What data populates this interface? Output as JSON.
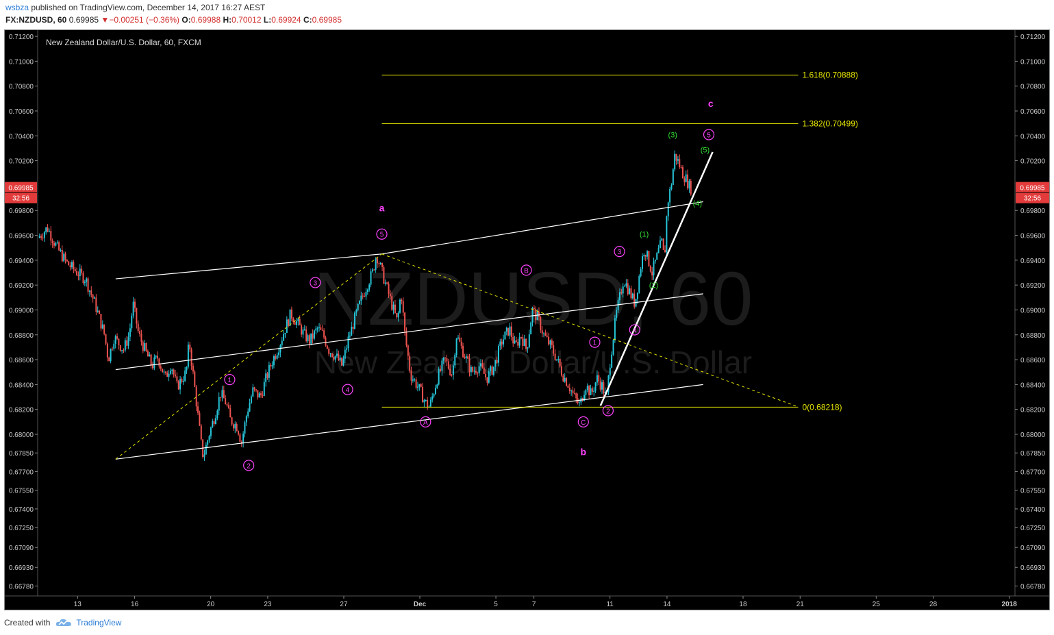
{
  "header": {
    "author": "wsbza",
    "published_text": "published on TradingView.com, December 14, 2017 16:27 AEST",
    "symbol": "FX:NZDUSD, 60",
    "price": "0.69985",
    "change_arrow": "▼",
    "change": "−0.00251 (−0.36%)",
    "open_label": "O:",
    "open": "0.69988",
    "high_label": "H:",
    "high": "0.70012",
    "low_label": "L:",
    "low": "0.69924",
    "close_label": "C:",
    "close": "0.69985"
  },
  "footer": {
    "created_with": "Created with",
    "brand": "TradingView",
    "logo_icon": "tradingview-cloud-icon"
  },
  "chart_data": {
    "type": "candlestick",
    "title": "New Zealand Dollar/U.S. Dollar, 60, FXCM",
    "watermark_symbol": "NZDUSD, 60",
    "watermark_name": "New Zealand Dollar/U.S. Dollar",
    "ylim": [
      0.667,
      0.7125
    ],
    "y_ticks": [
      "0.71200",
      "0.71000",
      "0.70800",
      "0.70600",
      "0.70400",
      "0.70200",
      "0.69985",
      "0.69800",
      "0.69600",
      "0.69400",
      "0.69200",
      "0.69000",
      "0.68800",
      "0.68600",
      "0.68400",
      "0.68200",
      "0.68000",
      "0.67850",
      "0.67700",
      "0.67550",
      "0.67400",
      "0.67250",
      "0.67090",
      "0.66930",
      "0.66780"
    ],
    "x_tick_labels": [
      {
        "label": "13",
        "day": 0
      },
      {
        "label": "16",
        "day": 3
      },
      {
        "label": "20",
        "day": 7
      },
      {
        "label": "23",
        "day": 10
      },
      {
        "label": "27",
        "day": 14
      },
      {
        "label": "Dec",
        "day": 18
      },
      {
        "label": "5",
        "day": 22
      },
      {
        "label": "7",
        "day": 24
      },
      {
        "label": "11",
        "day": 28
      },
      {
        "label": "14",
        "day": 31
      },
      {
        "label": "18",
        "day": 35
      },
      {
        "label": "21",
        "day": 38
      },
      {
        "label": "25",
        "day": 42
      },
      {
        "label": "28",
        "day": 45
      },
      {
        "label": "2018",
        "day": 49
      }
    ],
    "x_range_days": [
      -2.1,
      49.3
    ],
    "last_price": "0.69985",
    "countdown": "32:56",
    "price_path": [
      [
        -2.0,
        0.6958
      ],
      [
        -1.5,
        0.6966
      ],
      [
        -1.0,
        0.695
      ],
      [
        -0.5,
        0.6938
      ],
      [
        0.0,
        0.6931
      ],
      [
        0.5,
        0.6925
      ],
      [
        1.0,
        0.6905
      ],
      [
        1.5,
        0.688
      ],
      [
        1.7,
        0.686
      ],
      [
        2.0,
        0.6878
      ],
      [
        2.5,
        0.6868
      ],
      [
        2.8,
        0.688
      ],
      [
        3.0,
        0.6905
      ],
      [
        3.3,
        0.688
      ],
      [
        3.7,
        0.6865
      ],
      [
        4.0,
        0.6855
      ],
      [
        4.3,
        0.6862
      ],
      [
        4.7,
        0.6845
      ],
      [
        5.0,
        0.6857
      ],
      [
        5.3,
        0.6838
      ],
      [
        5.8,
        0.685
      ],
      [
        5.95,
        0.6875
      ],
      [
        6.3,
        0.683
      ],
      [
        6.6,
        0.679
      ],
      [
        6.7,
        0.6782
      ],
      [
        7.0,
        0.68
      ],
      [
        7.3,
        0.6815
      ],
      [
        7.6,
        0.6833
      ],
      [
        7.9,
        0.6825
      ],
      [
        8.1,
        0.6812
      ],
      [
        8.5,
        0.6806
      ],
      [
        8.7,
        0.6793
      ],
      [
        9.0,
        0.6818
      ],
      [
        9.3,
        0.6835
      ],
      [
        9.7,
        0.683
      ],
      [
        10.0,
        0.6845
      ],
      [
        10.3,
        0.6858
      ],
      [
        10.7,
        0.6872
      ],
      [
        11.0,
        0.6885
      ],
      [
        11.3,
        0.6897
      ],
      [
        11.7,
        0.6888
      ],
      [
        12.0,
        0.688
      ],
      [
        12.3,
        0.6875
      ],
      [
        12.7,
        0.6885
      ],
      [
        13.0,
        0.688
      ],
      [
        13.3,
        0.6868
      ],
      [
        13.7,
        0.6862
      ],
      [
        14.0,
        0.6855
      ],
      [
        14.3,
        0.6875
      ],
      [
        14.7,
        0.6895
      ],
      [
        15.0,
        0.6908
      ],
      [
        15.3,
        0.692
      ],
      [
        15.6,
        0.693
      ],
      [
        15.8,
        0.6945
      ],
      [
        16.0,
        0.6935
      ],
      [
        16.3,
        0.692
      ],
      [
        16.6,
        0.6905
      ],
      [
        16.9,
        0.689
      ],
      [
        17.1,
        0.6915
      ],
      [
        17.3,
        0.688
      ],
      [
        17.6,
        0.6848
      ],
      [
        18.0,
        0.6838
      ],
      [
        18.4,
        0.6825
      ],
      [
        18.6,
        0.6822
      ],
      [
        19.0,
        0.6845
      ],
      [
        19.4,
        0.686
      ],
      [
        19.8,
        0.6848
      ],
      [
        20.0,
        0.688
      ],
      [
        20.4,
        0.6865
      ],
      [
        20.8,
        0.685
      ],
      [
        21.2,
        0.6855
      ],
      [
        21.6,
        0.6845
      ],
      [
        22.0,
        0.6855
      ],
      [
        22.4,
        0.6875
      ],
      [
        22.8,
        0.6885
      ],
      [
        23.1,
        0.687
      ],
      [
        23.4,
        0.688
      ],
      [
        23.7,
        0.6868
      ],
      [
        24.0,
        0.69
      ],
      [
        24.3,
        0.6893
      ],
      [
        24.6,
        0.688
      ],
      [
        25.0,
        0.687
      ],
      [
        25.3,
        0.686
      ],
      [
        25.6,
        0.6848
      ],
      [
        25.9,
        0.684
      ],
      [
        26.2,
        0.683
      ],
      [
        26.5,
        0.6823
      ],
      [
        26.8,
        0.684
      ],
      [
        27.1,
        0.6832
      ],
      [
        27.4,
        0.6845
      ],
      [
        27.7,
        0.6838
      ],
      [
        27.9,
        0.6828
      ],
      [
        28.1,
        0.686
      ],
      [
        28.4,
        0.6895
      ],
      [
        28.8,
        0.6925
      ],
      [
        29.1,
        0.6915
      ],
      [
        29.4,
        0.6905
      ],
      [
        29.7,
        0.6935
      ],
      [
        29.9,
        0.695
      ],
      [
        30.1,
        0.694
      ],
      [
        30.3,
        0.693
      ],
      [
        30.6,
        0.6945
      ],
      [
        30.8,
        0.6955
      ],
      [
        30.95,
        0.694
      ],
      [
        31.1,
        0.6985
      ],
      [
        31.3,
        0.7
      ],
      [
        31.5,
        0.7025
      ],
      [
        31.7,
        0.7018
      ],
      [
        31.9,
        0.701
      ],
      [
        32.1,
        0.7005
      ],
      [
        32.3,
        0.6998
      ]
    ],
    "channels": [
      {
        "name": "outer-channel-upper",
        "color": "#ffffff",
        "points": [
          [
            2.0,
            0.6925
          ],
          [
            16.0,
            0.6945
          ]
        ]
      },
      {
        "name": "outer-channel-upper-ext",
        "color": "#ffffff",
        "points": [
          [
            16.0,
            0.6945
          ],
          [
            32.9,
            0.6987
          ]
        ]
      },
      {
        "name": "middle-channel",
        "color": "#ffffff",
        "points": [
          [
            2.0,
            0.6852
          ],
          [
            32.9,
            0.6913
          ]
        ]
      },
      {
        "name": "lower-channel",
        "color": "#ffffff",
        "points": [
          [
            2.0,
            0.678
          ],
          [
            32.9,
            0.684
          ]
        ]
      }
    ],
    "trendline_thick": {
      "color": "#ffffff",
      "points": [
        [
          27.5,
          0.6823
        ],
        [
          33.4,
          0.7027
        ]
      ]
    },
    "dashed_lines": [
      {
        "name": "fib-anchor-up",
        "color": "#e6e600",
        "points": [
          [
            2.0,
            0.678
          ],
          [
            16.0,
            0.6945
          ]
        ]
      },
      {
        "name": "fib-anchor-down",
        "color": "#e6e600",
        "points": [
          [
            16.0,
            0.6945
          ],
          [
            37.9,
            0.6822
          ]
        ]
      }
    ],
    "fib_levels": [
      {
        "label": "1.618(0.70888)",
        "value": 0.70888,
        "from_day": 16.0,
        "to_day": 37.9
      },
      {
        "label": "1.382(0.70499)",
        "value": 0.70499,
        "from_day": 16.0,
        "to_day": 37.9
      },
      {
        "label": "0(0.68218)",
        "value": 0.68218,
        "from_day": 16.0,
        "to_day": 37.9
      }
    ],
    "wave_labels": [
      {
        "text": "a",
        "style": "letter",
        "day": 16.0,
        "price": 0.6982,
        "color": "#ff44ff"
      },
      {
        "text": "b",
        "style": "letter",
        "day": 26.6,
        "price": 0.6786,
        "color": "#ff44ff"
      },
      {
        "text": "c",
        "style": "letter",
        "day": 33.3,
        "price": 0.7066,
        "color": "#ff44ff"
      },
      {
        "text": "1",
        "style": "circle",
        "day": 8.0,
        "price": 0.6844,
        "color": "#ff44ff"
      },
      {
        "text": "2",
        "style": "circle",
        "day": 9.0,
        "price": 0.6775,
        "color": "#ff44ff"
      },
      {
        "text": "3",
        "style": "circle",
        "day": 12.5,
        "price": 0.6922,
        "color": "#ff44ff"
      },
      {
        "text": "4",
        "style": "circle",
        "day": 14.2,
        "price": 0.6836,
        "color": "#ff44ff"
      },
      {
        "text": "5",
        "style": "circle",
        "day": 16.0,
        "price": 0.6961,
        "color": "#ff44ff"
      },
      {
        "text": "A",
        "style": "circle",
        "day": 18.3,
        "price": 0.681,
        "color": "#ff44ff"
      },
      {
        "text": "B",
        "style": "circle",
        "day": 23.6,
        "price": 0.6932,
        "color": "#ff44ff"
      },
      {
        "text": "C",
        "style": "circle",
        "day": 26.6,
        "price": 0.681,
        "color": "#ff44ff"
      },
      {
        "text": "1",
        "style": "circle",
        "day": 27.2,
        "price": 0.6874,
        "color": "#ff44ff"
      },
      {
        "text": "2",
        "style": "circle",
        "day": 27.9,
        "price": 0.6819,
        "color": "#ff44ff"
      },
      {
        "text": "3",
        "style": "circle",
        "day": 28.5,
        "price": 0.6947,
        "color": "#ff44ff"
      },
      {
        "text": "4",
        "style": "circle",
        "day": 29.3,
        "price": 0.6884,
        "color": "#ff44ff"
      },
      {
        "text": "5",
        "style": "circle",
        "day": 33.2,
        "price": 0.7041,
        "color": "#ff44ff"
      },
      {
        "text": "(1)",
        "style": "paren",
        "day": 29.8,
        "price": 0.6961,
        "color": "#33dd33"
      },
      {
        "text": "(2)",
        "style": "paren",
        "day": 30.3,
        "price": 0.692,
        "color": "#33dd33"
      },
      {
        "text": "(3)",
        "style": "paren",
        "day": 31.3,
        "price": 0.7041,
        "color": "#33dd33"
      },
      {
        "text": "(4)",
        "style": "paren",
        "day": 32.6,
        "price": 0.6986,
        "color": "#33dd33"
      },
      {
        "text": "(5)",
        "style": "paren",
        "day": 33.0,
        "price": 0.7029,
        "color": "#33dd33"
      }
    ]
  }
}
